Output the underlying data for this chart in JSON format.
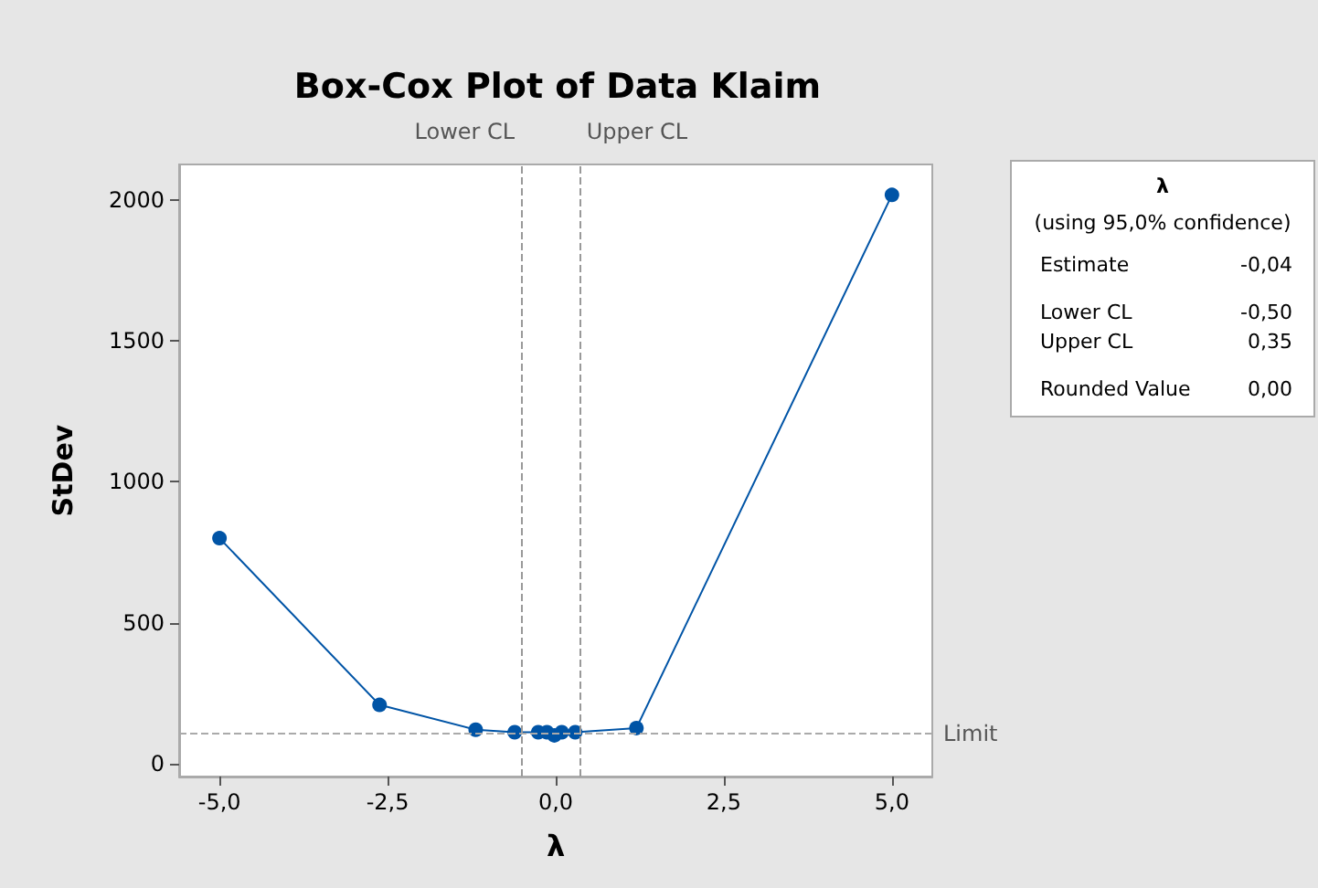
{
  "chart_data": {
    "type": "line",
    "title": "Box-Cox Plot of Data Klaim",
    "xlabel": "λ",
    "ylabel": "StDev",
    "x": [
      -5,
      -2.62,
      -1.19,
      -0.61,
      -0.26,
      -0.13,
      -0.02,
      0.09,
      0.29,
      1.2,
      5
    ],
    "series": [
      {
        "color": "#0054a6",
        "values": [
          800,
          209,
          121,
          112,
          112,
          112,
          101,
          112,
          112,
          127,
          2017
        ]
      }
    ],
    "xlim": [
      -5.6,
      5.6
    ],
    "ylim": [
      -45,
      2125
    ],
    "xticks": [
      {
        "value": -5,
        "label": "-5,0"
      },
      {
        "value": -2.5,
        "label": "-2,5"
      },
      {
        "value": 0,
        "label": "0,0"
      },
      {
        "value": 2.5,
        "label": "2,5"
      },
      {
        "value": 5,
        "label": "5,0"
      }
    ],
    "yticks": [
      0,
      500,
      1000,
      1500,
      2000
    ],
    "ref_lines": [
      {
        "axis": "x",
        "value": -0.5,
        "label": "Lower CL",
        "color": "#999999",
        "line_style": "dashed"
      },
      {
        "axis": "x",
        "value": 0.35,
        "label": "Upper CL",
        "color": "#999999",
        "line_style": "dashed"
      },
      {
        "axis": "y",
        "value": 106,
        "label": "Limit",
        "color": "#aaaaaa",
        "line_style": "dashed"
      }
    ],
    "annotations": [
      "λ",
      "(using 95,0% confidence)",
      "Estimate",
      "-0,04",
      "Lower CL",
      "-0,50",
      "Upper CL",
      "0,35",
      "Rounded Value",
      "0,00"
    ],
    "marker": "circle",
    "line_style": "solid",
    "grid": false
  }
}
